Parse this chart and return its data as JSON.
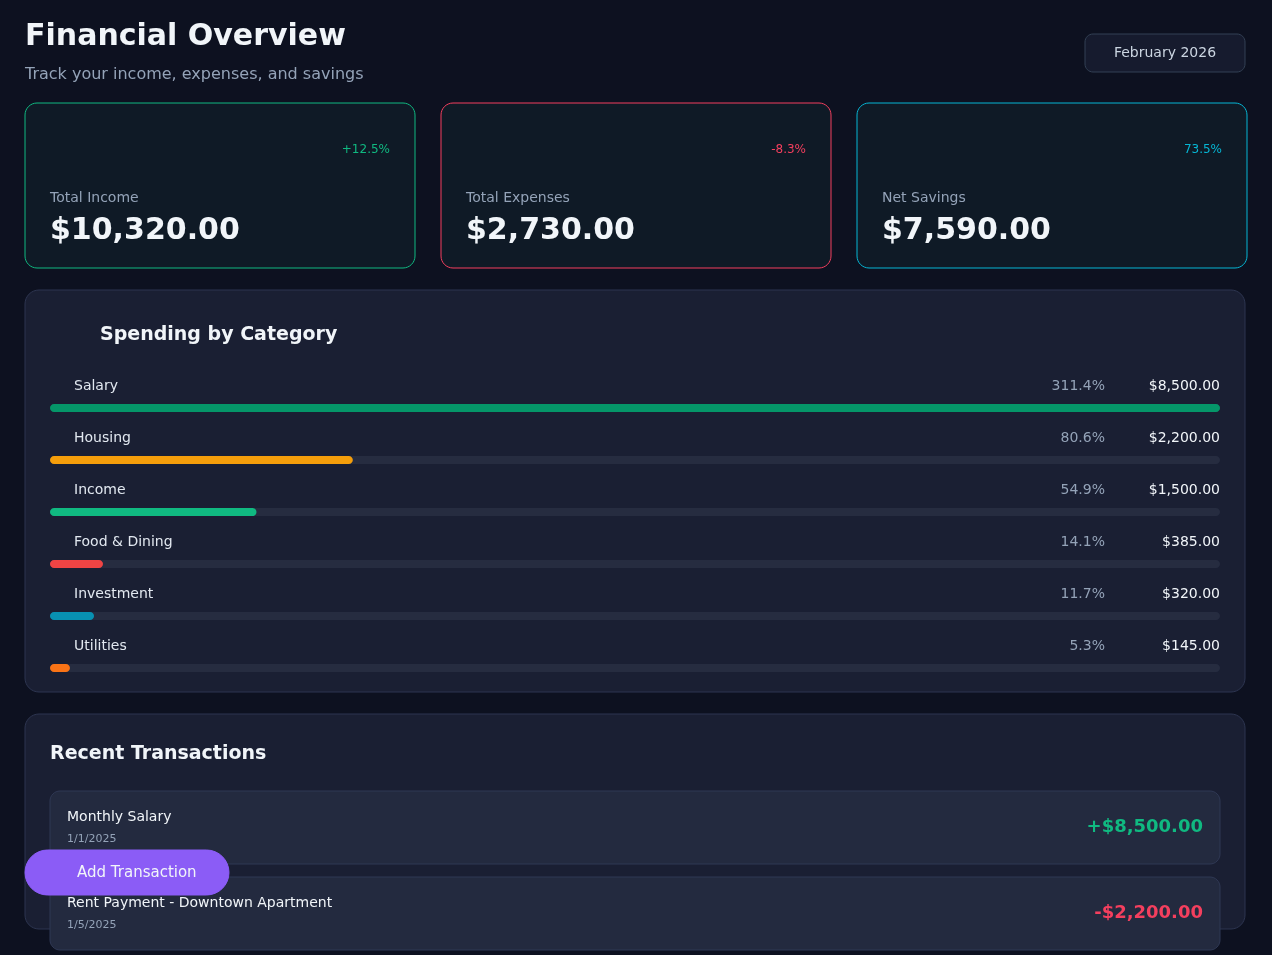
{
  "chart_data": [
    {
      "type": "other",
      "title": "Financial Overview",
      "subtitle": "Track your income, expenses, and savings",
      "annotations": [
        "February 2026"
      ]
    },
    {
      "type": "other",
      "title": "Total Income",
      "color": "#10b981",
      "annotations": [
        "+12.5%",
        "$10,320.00"
      ]
    },
    {
      "type": "other",
      "title": "Total Expenses",
      "color": "#f43f5e",
      "annotations": [
        "-8.3%",
        "$2,730.00"
      ]
    },
    {
      "type": "other",
      "title": "Net Savings",
      "color": "#06b6d4",
      "annotations": [
        "73.5%",
        "$7,590.00"
      ]
    },
    {
      "type": "bar",
      "orientation": "horizontal",
      "title": "Spending by Category",
      "categories": [
        "Salary",
        "Housing",
        "Income",
        "Food & Dining",
        "Investment",
        "Utilities"
      ],
      "values": [
        8500,
        2200,
        1500,
        385,
        320,
        145
      ],
      "colors": [
        "#059669",
        "#f59e0b",
        "#10b981",
        "#ef4444",
        "#0891b2",
        "#f97316"
      ],
      "value_labels": [
        "$8,500.00",
        "$2,200.00",
        "$1,500.00",
        "$385.00",
        "$320.00",
        "$145.00"
      ],
      "annotations": [
        "311.4%",
        "80.6%",
        "54.9%",
        "14.1%",
        "11.7%",
        "5.3%"
      ]
    },
    {
      "type": "other",
      "title": "Recent Transactions",
      "colors": [
        "#10b981",
        "#f43f5e"
      ],
      "annotations": [
        "Monthly Salary",
        "1/1/2025",
        "+$8,500.00",
        "Rent Payment - Downtown Apartment",
        "1/5/2025",
        "-$2,200.00",
        "Add Transaction"
      ]
    }
  ]
}
